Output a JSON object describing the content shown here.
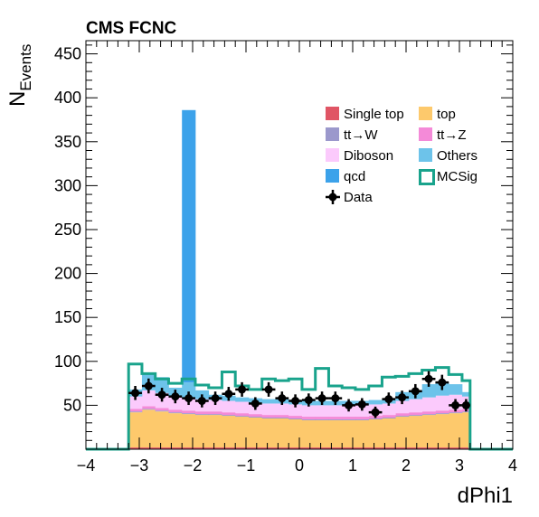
{
  "chart_data": {
    "type": "bar",
    "title": "CMS FCNC",
    "xlabel": "dPhi1",
    "ylabel": "N",
    "ylabel_sub": "Events",
    "xlim": [
      -4,
      4
    ],
    "ylim": [
      0,
      465
    ],
    "x_ticks": [
      -4,
      -3,
      -2,
      -1,
      0,
      1,
      2,
      3,
      4
    ],
    "x_tick_labels": [
      "−4",
      "−3",
      "−2",
      "−1",
      "0",
      "1",
      "2",
      "3",
      "4"
    ],
    "y_ticks": [
      50,
      100,
      150,
      200,
      250,
      300,
      350,
      400,
      450
    ],
    "y_tick_labels": [
      "50",
      "100",
      "150",
      "200",
      "250",
      "300",
      "350",
      "400",
      "450"
    ],
    "grid": false,
    "legend_position": "top-right",
    "bin_edges": [
      -3.2,
      -2.95,
      -2.7,
      -2.45,
      -2.2,
      -1.95,
      -1.7,
      -1.45,
      -1.2,
      -0.95,
      -0.7,
      -0.45,
      -0.2,
      0.05,
      0.3,
      0.55,
      0.8,
      1.05,
      1.3,
      1.55,
      1.8,
      2.05,
      2.3,
      2.55,
      2.8,
      3.05,
      3.2
    ],
    "series": [
      {
        "name": "Single top",
        "kind": "stack",
        "color": "#e05565",
        "values": [
          2,
          2,
          2,
          2,
          2,
          2,
          2,
          2,
          2,
          2,
          2,
          2,
          2,
          2,
          2,
          2,
          2,
          2,
          2,
          2,
          2,
          2,
          2,
          2,
          2,
          2
        ]
      },
      {
        "name": "top",
        "kind": "stack",
        "color": "#fdc96c",
        "values": [
          40,
          43,
          41,
          39,
          38,
          37,
          37,
          36,
          35,
          34,
          33,
          33,
          32,
          31,
          31,
          31,
          31,
          31,
          32,
          33,
          35,
          36,
          37,
          38,
          39,
          40
        ]
      },
      {
        "name": "tt→W",
        "kind": "stack",
        "color": "#9b98cc",
        "values": [
          1,
          1,
          1,
          1,
          1,
          1,
          1,
          1,
          1,
          1,
          1,
          1,
          1,
          1,
          1,
          1,
          1,
          1,
          1,
          1,
          1,
          1,
          1,
          1,
          1,
          1
        ]
      },
      {
        "name": "tt→Z",
        "kind": "stack",
        "color": "#f48ad8",
        "values": [
          3,
          3,
          3,
          3,
          3,
          3,
          3,
          3,
          3,
          3,
          3,
          3,
          3,
          3,
          3,
          3,
          3,
          3,
          3,
          3,
          3,
          3,
          3,
          3,
          3,
          3
        ]
      },
      {
        "name": "Diboson",
        "kind": "stack",
        "color": "#fbcafc",
        "values": [
          14,
          18,
          17,
          15,
          14,
          14,
          13,
          13,
          13,
          13,
          13,
          13,
          13,
          13,
          13,
          13,
          13,
          13,
          13,
          13,
          14,
          15,
          16,
          17,
          17,
          14
        ]
      },
      {
        "name": "Others",
        "kind": "stack",
        "color": "#6dc3ea",
        "values": [
          8,
          20,
          18,
          10,
          18,
          10,
          6,
          6,
          5,
          5,
          5,
          5,
          5,
          5,
          5,
          5,
          5,
          5,
          5,
          5,
          10,
          10,
          15,
          15,
          12,
          5
        ]
      },
      {
        "name": "qcd",
        "kind": "stack",
        "color": "#3ca2ea",
        "values": [
          0,
          0,
          0,
          0,
          310,
          0,
          0,
          0,
          0,
          0,
          0,
          0,
          0,
          0,
          0,
          0,
          0,
          0,
          0,
          0,
          0,
          0,
          0,
          0,
          0,
          0
        ]
      },
      {
        "name": "MCSig",
        "kind": "step",
        "color": "#19a38c",
        "values": [
          97,
          86,
          80,
          75,
          80,
          73,
          70,
          88,
          72,
          68,
          80,
          78,
          80,
          68,
          92,
          72,
          70,
          68,
          72,
          82,
          83,
          86,
          90,
          93,
          85,
          78
        ]
      },
      {
        "name": "Data",
        "kind": "points",
        "color": "#000000",
        "x": [
          -3.075,
          -2.825,
          -2.575,
          -2.325,
          -2.075,
          -1.825,
          -1.575,
          -1.325,
          -1.075,
          -0.825,
          -0.575,
          -0.325,
          -0.075,
          0.175,
          0.425,
          0.675,
          0.925,
          1.175,
          1.425,
          1.675,
          1.925,
          2.175,
          2.425,
          2.675,
          2.925,
          3.125
        ],
        "values": [
          64,
          72,
          62,
          60,
          58,
          55,
          58,
          63,
          68,
          52,
          68,
          58,
          55,
          56,
          58,
          58,
          50,
          51,
          42,
          57,
          59,
          66,
          80,
          76,
          50,
          50
        ]
      }
    ]
  }
}
